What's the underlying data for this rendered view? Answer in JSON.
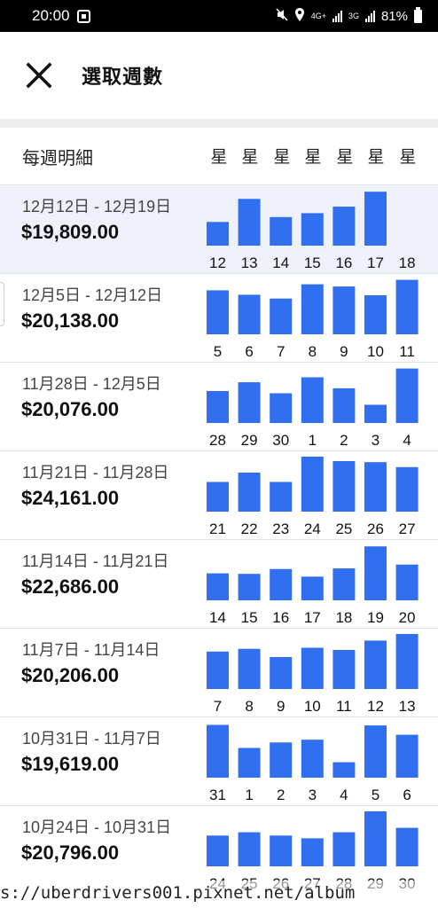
{
  "status_bar": {
    "time": "20:00",
    "net_label": "4G+",
    "net_label_2": "3G",
    "battery": "81%"
  },
  "header": {
    "title": "選取週數",
    "close_icon": "close-icon"
  },
  "column_header": {
    "label": "每週明細",
    "day_headers": [
      "星",
      "星",
      "星",
      "星",
      "星",
      "星",
      "星"
    ]
  },
  "colors": {
    "bar": "#2f6ff0",
    "selected_row": "#eef1f9"
  },
  "weeks": [
    {
      "range": "12月12日 - 12月19日",
      "amount": "$19,809.00",
      "selected": true,
      "days": [
        "12",
        "13",
        "14",
        "15",
        "16",
        "17",
        "18"
      ],
      "bar_levels": [
        0.43,
        0.85,
        0.52,
        0.59,
        0.71,
        0.98,
        0
      ]
    },
    {
      "range": "12月5日 - 12月12日",
      "amount": "$20,138.00",
      "selected": false,
      "days": [
        "5",
        "6",
        "7",
        "8",
        "9",
        "10",
        "11"
      ],
      "bar_levels": [
        0.8,
        0.72,
        0.65,
        0.91,
        0.87,
        0.71,
        0.99
      ]
    },
    {
      "range": "11月28日 - 12月5日",
      "amount": "$20,076.00",
      "selected": false,
      "days": [
        "28",
        "29",
        "30",
        "1",
        "2",
        "3",
        "4"
      ],
      "bar_levels": [
        0.58,
        0.74,
        0.54,
        0.83,
        0.63,
        0.33,
        0.99
      ]
    },
    {
      "range": "11月21日 - 11月28日",
      "amount": "$24,161.00",
      "selected": false,
      "days": [
        "21",
        "22",
        "23",
        "24",
        "25",
        "26",
        "27"
      ],
      "bar_levels": [
        0.54,
        0.71,
        0.54,
        1.0,
        0.92,
        0.9,
        0.81
      ]
    },
    {
      "range": "11月14日 - 11月21日",
      "amount": "$22,686.00",
      "selected": false,
      "days": [
        "14",
        "15",
        "16",
        "17",
        "18",
        "19",
        "20"
      ],
      "bar_levels": [
        0.49,
        0.48,
        0.57,
        0.43,
        0.58,
        0.98,
        0.65
      ]
    },
    {
      "range": "11月7日 - 11月14日",
      "amount": "$20,206.00",
      "selected": false,
      "days": [
        "7",
        "8",
        "9",
        "10",
        "11",
        "12",
        "13"
      ],
      "bar_levels": [
        0.68,
        0.73,
        0.58,
        0.75,
        0.71,
        0.88,
        1.0
      ]
    },
    {
      "range": "10月31日 - 11月7日",
      "amount": "$19,619.00",
      "selected": false,
      "days": [
        "31",
        "1",
        "2",
        "3",
        "4",
        "5",
        "6"
      ],
      "bar_levels": [
        0.96,
        0.54,
        0.64,
        0.69,
        0.28,
        0.95,
        0.78
      ]
    },
    {
      "range": "10月24日 - 10月31日",
      "amount": "$20,796.00",
      "selected": false,
      "days": [
        "24",
        "25",
        "26",
        "27",
        "28",
        "29",
        "30"
      ],
      "bar_levels": [
        0.56,
        0.62,
        0.56,
        0.51,
        0.62,
        1.0,
        0.7
      ]
    }
  ],
  "watermark": "s://uberdrivers001.pixnet.net/album"
}
